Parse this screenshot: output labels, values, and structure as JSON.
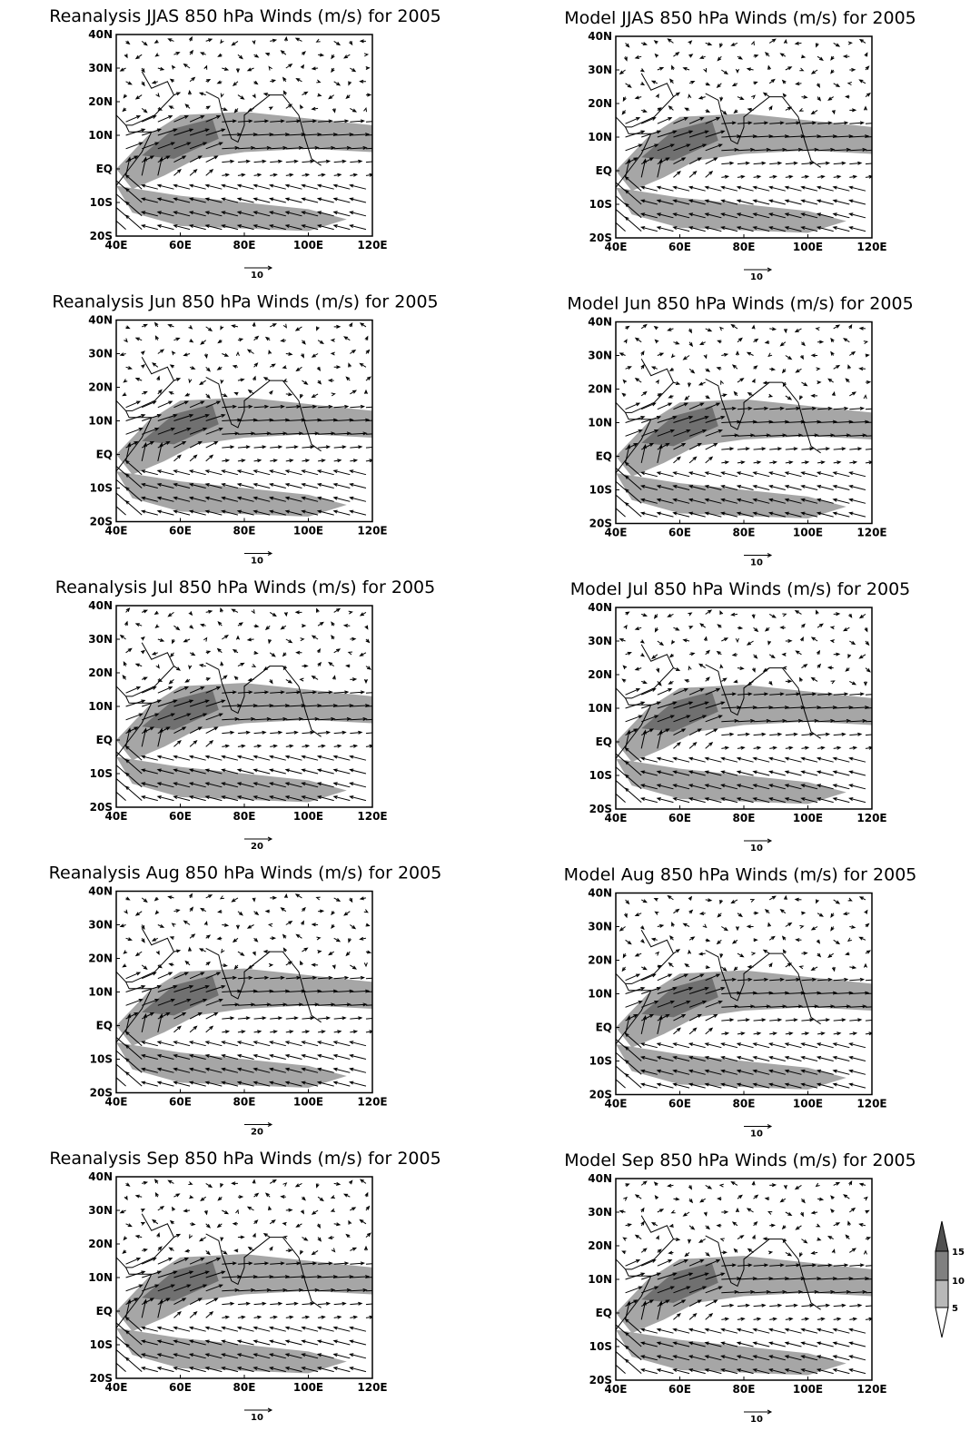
{
  "panels": [
    {
      "title": "Reanalysis JJAS 850 hPa Winds (m/s) for 2005",
      "reference_vector": "10"
    },
    {
      "title": "Model JJAS 850 hPa Winds (m/s) for 2005",
      "reference_vector": "10"
    },
    {
      "title": "Reanalysis Jun 850 hPa Winds (m/s) for 2005",
      "reference_vector": "10"
    },
    {
      "title": "Model Jun 850 hPa Winds (m/s) for 2005",
      "reference_vector": "10"
    },
    {
      "title": "Reanalysis Jul 850 hPa Winds (m/s) for 2005",
      "reference_vector": "20"
    },
    {
      "title": "Model Jul 850 hPa Winds (m/s) for 2005",
      "reference_vector": "10"
    },
    {
      "title": "Reanalysis Aug 850 hPa Winds (m/s) for 2005",
      "reference_vector": "20"
    },
    {
      "title": "Model Aug 850 hPa Winds (m/s) for 2005",
      "reference_vector": "10"
    },
    {
      "title": "Reanalysis Sep 850 hPa Winds (m/s) for 2005",
      "reference_vector": "10"
    },
    {
      "title": "Model Sep 850 hPa Winds (m/s) for 2005",
      "reference_vector": "10"
    }
  ],
  "axes": {
    "x_labels": [
      "40E",
      "60E",
      "80E",
      "100E",
      "120E"
    ],
    "y_labels": [
      "40N",
      "30N",
      "20N",
      "10N",
      "EQ",
      "10S",
      "20S"
    ]
  },
  "colorbar": {
    "labels": [
      "15",
      "10",
      "5"
    ]
  }
}
